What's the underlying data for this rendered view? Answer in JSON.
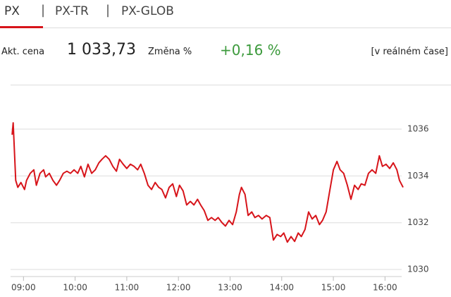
{
  "tabs": [
    "PX",
    "PX-TR",
    "PX-GLOB"
  ],
  "quote": {
    "price_label": "Akt. cena",
    "price": "1 033,73",
    "change_label": "Změna %",
    "change": "+0,16 %",
    "realtime": "[v reálném čase]"
  },
  "chart_data": {
    "type": "line",
    "x": [
      8.78,
      8.8,
      8.85,
      8.89,
      8.95,
      9.02,
      9.06,
      9.13,
      9.2,
      9.25,
      9.32,
      9.39,
      9.43,
      9.5,
      9.57,
      9.64,
      9.7,
      9.77,
      9.84,
      9.91,
      9.98,
      10.05,
      10.11,
      10.18,
      10.25,
      10.32,
      10.39,
      10.46,
      10.52,
      10.59,
      10.66,
      10.73,
      10.8,
      10.86,
      10.93,
      11.0,
      11.07,
      11.14,
      11.21,
      11.27,
      11.34,
      11.41,
      11.48,
      11.55,
      11.62,
      11.68,
      11.75,
      11.82,
      11.89,
      11.96,
      12.02,
      12.09,
      12.16,
      12.23,
      12.3,
      12.37,
      12.43,
      12.5,
      12.57,
      12.64,
      12.71,
      12.77,
      12.84,
      12.91,
      12.98,
      13.05,
      13.12,
      13.18,
      13.22,
      13.29,
      13.35,
      13.42,
      13.48,
      13.55,
      13.62,
      13.7,
      13.77,
      13.84,
      13.91,
      13.98,
      14.04,
      14.11,
      14.18,
      14.25,
      14.32,
      14.38,
      14.45,
      14.52,
      14.59,
      14.66,
      14.73,
      14.79,
      14.86,
      14.93,
      15.0,
      15.07,
      15.13,
      15.2,
      15.27,
      15.34,
      15.41,
      15.48,
      15.54,
      15.61,
      15.68,
      15.75,
      15.82,
      15.89,
      15.95,
      16.02,
      16.09,
      16.16,
      16.23,
      16.28,
      16.35
    ],
    "series": [
      {
        "name": "PX",
        "color": "#d7141a",
        "values": [
          1035.76,
          1036.27,
          1033.81,
          1033.51,
          1033.72,
          1033.42,
          1033.81,
          1034.11,
          1034.26,
          1033.6,
          1034.11,
          1034.26,
          1033.96,
          1034.11,
          1033.81,
          1033.6,
          1033.81,
          1034.11,
          1034.2,
          1034.11,
          1034.26,
          1034.11,
          1034.41,
          1033.96,
          1034.5,
          1034.11,
          1034.26,
          1034.56,
          1034.71,
          1034.86,
          1034.71,
          1034.41,
          1034.2,
          1034.71,
          1034.5,
          1034.32,
          1034.5,
          1034.41,
          1034.26,
          1034.5,
          1034.11,
          1033.6,
          1033.42,
          1033.72,
          1033.51,
          1033.42,
          1033.06,
          1033.51,
          1033.66,
          1033.12,
          1033.6,
          1033.36,
          1032.76,
          1032.91,
          1032.76,
          1033.0,
          1032.76,
          1032.52,
          1032.1,
          1032.22,
          1032.1,
          1032.22,
          1032.01,
          1031.86,
          1032.1,
          1031.92,
          1032.46,
          1033.21,
          1033.51,
          1033.21,
          1032.31,
          1032.46,
          1032.22,
          1032.31,
          1032.16,
          1032.31,
          1032.22,
          1031.26,
          1031.5,
          1031.41,
          1031.56,
          1031.17,
          1031.41,
          1031.2,
          1031.56,
          1031.41,
          1031.71,
          1032.46,
          1032.16,
          1032.31,
          1031.92,
          1032.1,
          1032.46,
          1033.36,
          1034.26,
          1034.62,
          1034.26,
          1034.11,
          1033.6,
          1033.0,
          1033.6,
          1033.42,
          1033.66,
          1033.6,
          1034.11,
          1034.26,
          1034.11,
          1034.86,
          1034.41,
          1034.5,
          1034.32,
          1034.56,
          1034.26,
          1033.81,
          1033.51
        ]
      }
    ],
    "xlim": [
      8.75,
      16.5
    ],
    "xticks": [
      {
        "value": 9,
        "label": "09:00"
      },
      {
        "value": 10,
        "label": "10:00"
      },
      {
        "value": 11,
        "label": "11:00"
      },
      {
        "value": 12,
        "label": "12:00"
      },
      {
        "value": 13,
        "label": "13:00"
      },
      {
        "value": 14,
        "label": "14:00"
      },
      {
        "value": 15,
        "label": "15:00"
      },
      {
        "value": 16,
        "label": "16:00"
      }
    ],
    "ylim": [
      1029.7,
      1037.9
    ],
    "yticks": [
      1030,
      1032,
      1034,
      1036
    ],
    "grid": true
  }
}
